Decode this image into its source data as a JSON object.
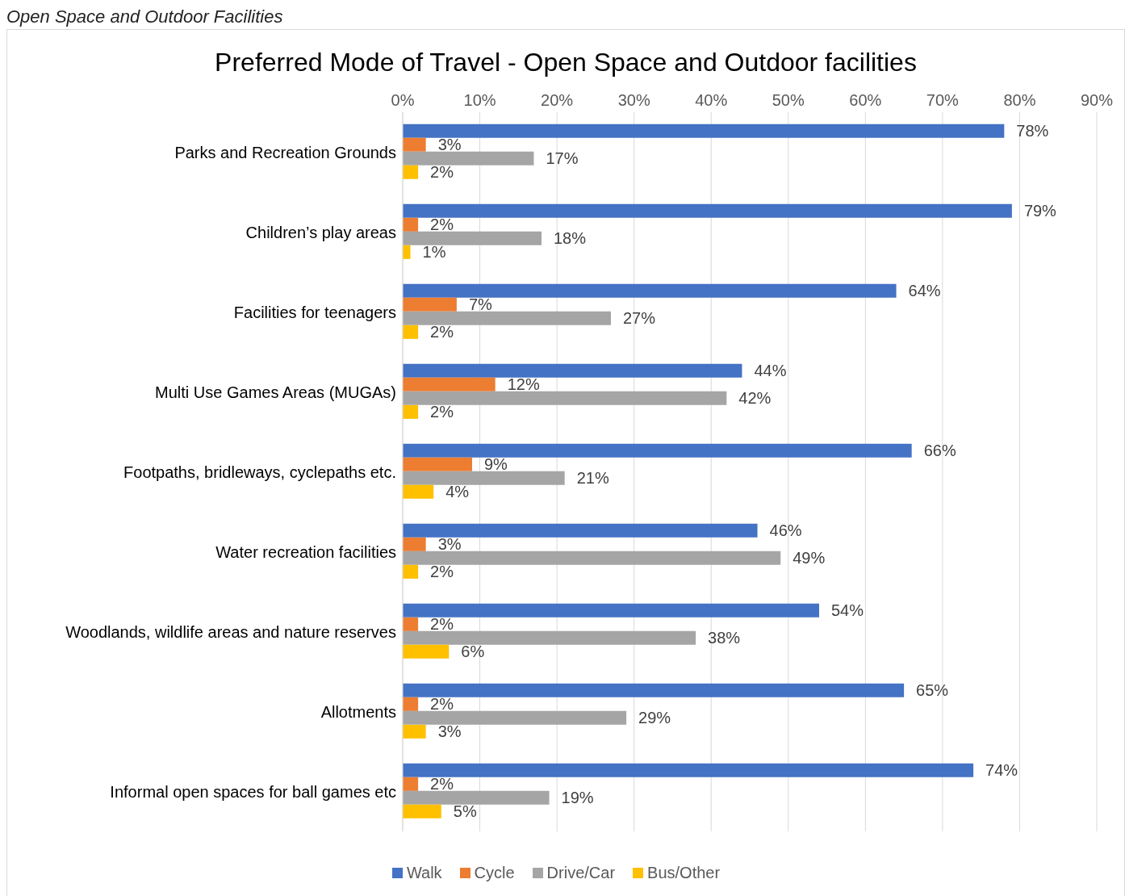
{
  "chart_data": {
    "type": "bar",
    "orientation": "horizontal",
    "title": "Preferred Mode of Travel - Open Space and Outdoor facilities",
    "annotations": [
      "Open Space and Outdoor Facilities"
    ],
    "categories": [
      "Parks and Recreation Grounds",
      "Children’s play areas",
      "Facilities for teenagers",
      "Multi Use Games Areas (MUGAs)",
      "Footpaths, bridleways, cyclepaths etc.",
      "Water recreation facilities",
      "Woodlands, wildlife areas and nature reserves",
      "Allotments",
      "Informal open spaces for ball games etc"
    ],
    "series": [
      {
        "name": "Walk",
        "color": "#4472c4",
        "values": [
          78,
          79,
          64,
          44,
          66,
          46,
          54,
          65,
          74
        ],
        "value_labels": [
          "78%",
          "79%",
          "64%",
          "44%",
          "66%",
          "46%",
          "54%",
          "65%",
          "74%"
        ]
      },
      {
        "name": "Cycle",
        "color": "#ed7d31",
        "values": [
          3,
          2,
          7,
          12,
          9,
          3,
          2,
          2,
          2
        ],
        "value_labels": [
          "3%",
          "2%",
          "7%",
          "12%",
          "9%",
          "3%",
          "2%",
          "2%",
          "2%"
        ]
      },
      {
        "name": "Drive/Car",
        "color": "#a5a5a5",
        "values": [
          17,
          18,
          27,
          42,
          21,
          49,
          38,
          29,
          19
        ],
        "value_labels": [
          "17%",
          "18%",
          "27%",
          "42%",
          "21%",
          "49%",
          "38%",
          "29%",
          "19%"
        ]
      },
      {
        "name": "Bus/Other",
        "color": "#ffc000",
        "values": [
          2,
          1,
          2,
          2,
          4,
          2,
          6,
          3,
          5
        ],
        "value_labels": [
          "2%",
          "1%",
          "2%",
          "2%",
          "4%",
          "2%",
          "6%",
          "3%",
          "5%"
        ]
      }
    ],
    "xlim": [
      0,
      90
    ],
    "xticks": [
      {
        "value": 0,
        "label": "0%"
      },
      {
        "value": 10,
        "label": "10%"
      },
      {
        "value": 20,
        "label": "20%"
      },
      {
        "value": 30,
        "label": "30%"
      },
      {
        "value": 40,
        "label": "40%"
      },
      {
        "value": 50,
        "label": "50%"
      },
      {
        "value": 60,
        "label": "60%"
      },
      {
        "value": 70,
        "label": "70%"
      },
      {
        "value": 80,
        "label": "80%"
      },
      {
        "value": 90,
        "label": "90%"
      }
    ],
    "grid": "x",
    "legend": "bottom"
  }
}
